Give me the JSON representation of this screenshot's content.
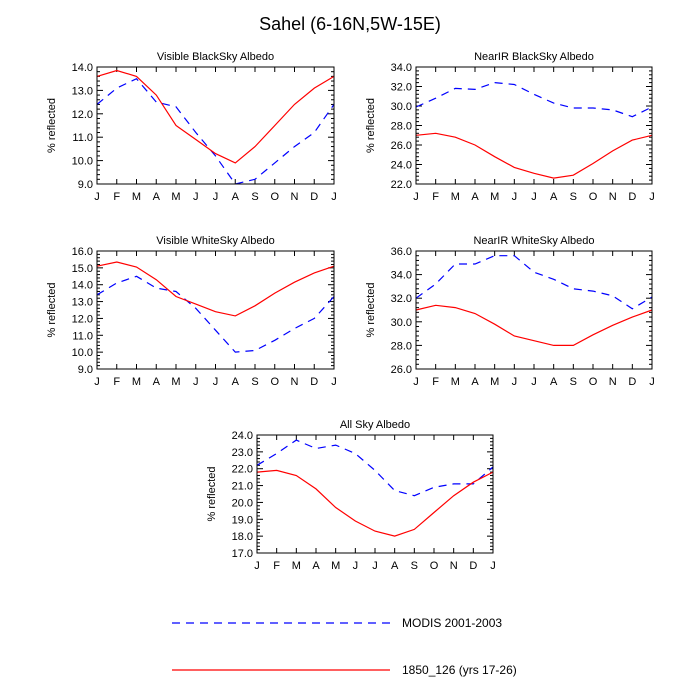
{
  "page_title": "Sahel (6-16N,5W-15E)",
  "legend": {
    "modis_label": "MODIS 2001-2003",
    "model_label": "1850_126 (yrs 17-26)"
  },
  "colors": {
    "modis": "#0000ff",
    "model": "#ff0000",
    "axis": "#000000"
  },
  "chart_data": [
    {
      "type": "line",
      "title": "Visible BlackSky Albedo",
      "ylabel": "% reflected",
      "categories": [
        "J",
        "F",
        "M",
        "A",
        "M",
        "J",
        "J",
        "A",
        "S",
        "O",
        "N",
        "D",
        "J"
      ],
      "ylim": [
        9.0,
        14.0
      ],
      "yticks": [
        "9.0",
        "10.0",
        "11.0",
        "12.0",
        "13.0",
        "14.0"
      ],
      "series": [
        {
          "name": "MODIS 2001-2003",
          "values": [
            12.4,
            13.1,
            13.5,
            12.5,
            12.3,
            11.2,
            10.2,
            9.0,
            9.2,
            9.9,
            10.6,
            11.2,
            12.4
          ]
        },
        {
          "name": "1850_126 (yrs 17-26)",
          "values": [
            13.6,
            13.85,
            13.6,
            12.8,
            11.5,
            10.9,
            10.3,
            9.9,
            10.6,
            11.5,
            12.4,
            13.1,
            13.6
          ]
        }
      ]
    },
    {
      "type": "line",
      "title": "NearIR BlackSky Albedo",
      "ylabel": "% reflected",
      "categories": [
        "J",
        "F",
        "M",
        "A",
        "M",
        "J",
        "J",
        "A",
        "S",
        "O",
        "N",
        "D",
        "J"
      ],
      "ylim": [
        22.0,
        34.0
      ],
      "yticks": [
        "22.0",
        "24.0",
        "26.0",
        "28.0",
        "30.0",
        "32.0",
        "34.0"
      ],
      "series": [
        {
          "name": "MODIS 2001-2003",
          "values": [
            29.9,
            30.8,
            31.8,
            31.7,
            32.4,
            32.2,
            31.2,
            30.3,
            29.8,
            29.8,
            29.6,
            28.9,
            29.9
          ]
        },
        {
          "name": "1850_126 (yrs 17-26)",
          "values": [
            27.0,
            27.2,
            26.8,
            26.0,
            24.8,
            23.7,
            23.1,
            22.6,
            22.9,
            24.1,
            25.4,
            26.5,
            27.0
          ]
        }
      ]
    },
    {
      "type": "line",
      "title": "Visible WhiteSky Albedo",
      "ylabel": "% reflected",
      "categories": [
        "J",
        "F",
        "M",
        "A",
        "M",
        "J",
        "J",
        "A",
        "S",
        "O",
        "N",
        "D",
        "J"
      ],
      "ylim": [
        9.0,
        16.0
      ],
      "yticks": [
        "9.0",
        "10.0",
        "11.0",
        "12.0",
        "13.0",
        "14.0",
        "15.0",
        "16.0"
      ],
      "series": [
        {
          "name": "MODIS 2001-2003",
          "values": [
            13.4,
            14.1,
            14.5,
            13.8,
            13.6,
            12.6,
            11.3,
            10.0,
            10.1,
            10.7,
            11.4,
            12.0,
            13.3
          ]
        },
        {
          "name": "1850_126 (yrs 17-26)",
          "values": [
            15.1,
            15.35,
            15.05,
            14.3,
            13.3,
            12.85,
            12.4,
            12.15,
            12.75,
            13.5,
            14.15,
            14.7,
            15.1
          ]
        }
      ]
    },
    {
      "type": "line",
      "title": "NearIR WhiteSky Albedo",
      "ylabel": "% reflected",
      "categories": [
        "J",
        "F",
        "M",
        "A",
        "M",
        "J",
        "J",
        "A",
        "S",
        "O",
        "N",
        "D",
        "J"
      ],
      "ylim": [
        26.0,
        36.0
      ],
      "yticks": [
        "26.0",
        "28.0",
        "30.0",
        "32.0",
        "34.0",
        "36.0"
      ],
      "series": [
        {
          "name": "MODIS 2001-2003",
          "values": [
            32.0,
            33.2,
            34.9,
            34.9,
            35.6,
            35.6,
            34.2,
            33.6,
            32.8,
            32.6,
            32.2,
            31.1,
            32.1
          ]
        },
        {
          "name": "1850_126 (yrs 17-26)",
          "values": [
            31.0,
            31.4,
            31.2,
            30.7,
            29.8,
            28.8,
            28.4,
            28.0,
            28.0,
            28.9,
            29.7,
            30.4,
            31.0
          ]
        }
      ]
    },
    {
      "type": "line",
      "title": "All Sky Albedo",
      "ylabel": "% reflected",
      "categories": [
        "J",
        "F",
        "M",
        "A",
        "M",
        "J",
        "J",
        "A",
        "S",
        "O",
        "N",
        "D",
        "J"
      ],
      "ylim": [
        17.0,
        24.0
      ],
      "yticks": [
        "17.0",
        "18.0",
        "19.0",
        "20.0",
        "21.0",
        "22.0",
        "23.0",
        "24.0"
      ],
      "series": [
        {
          "name": "MODIS 2001-2003",
          "values": [
            22.2,
            22.9,
            23.7,
            23.2,
            23.4,
            22.9,
            21.9,
            20.7,
            20.4,
            20.9,
            21.1,
            21.1,
            22.1
          ]
        },
        {
          "name": "1850_126 (yrs 17-26)",
          "values": [
            21.8,
            21.9,
            21.6,
            20.8,
            19.7,
            18.9,
            18.3,
            18.0,
            18.4,
            19.4,
            20.4,
            21.2,
            21.8
          ]
        }
      ]
    }
  ]
}
